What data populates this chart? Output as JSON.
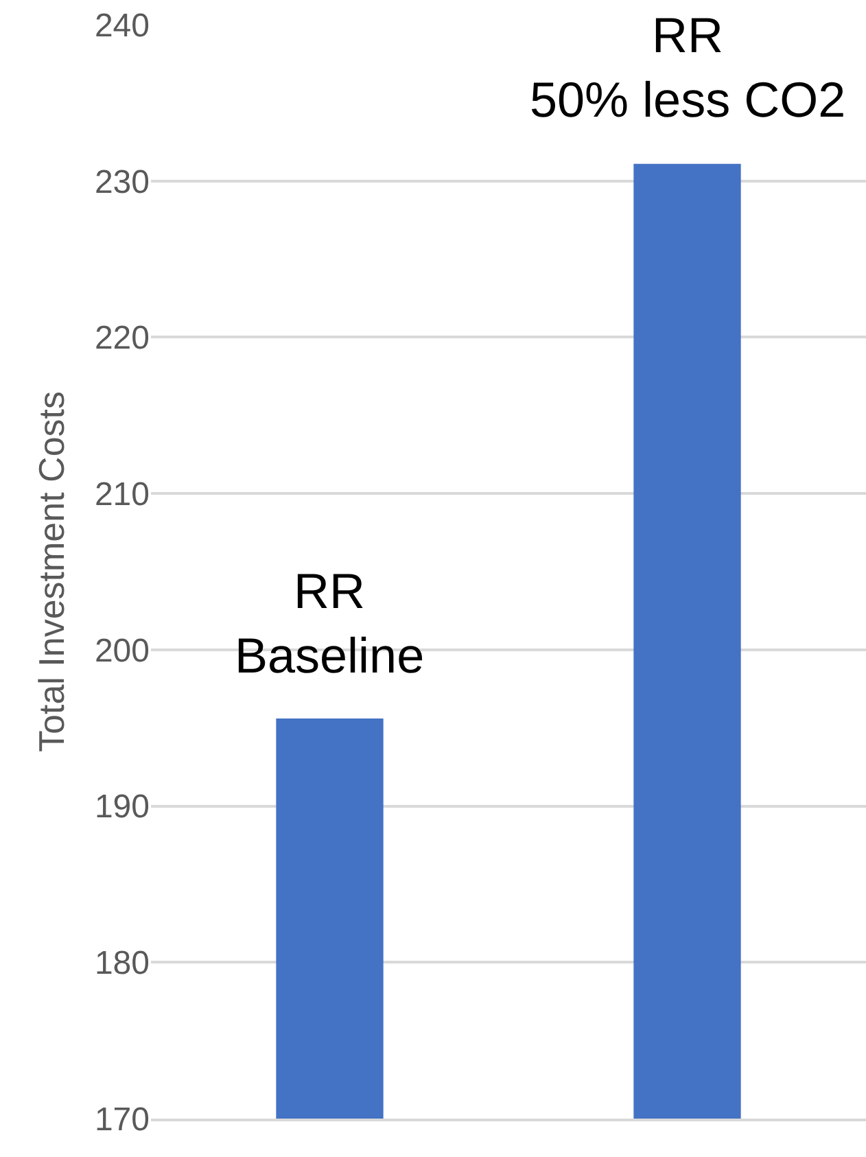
{
  "chart_data": {
    "type": "bar",
    "ylabel": "Total Investment Costs",
    "categories": [
      null,
      null
    ],
    "values": [
      195.6,
      231.1
    ],
    "color": "#4472c4",
    "ylim": [
      170,
      240
    ],
    "yticks": [
      170,
      180,
      190,
      200,
      210,
      220,
      230,
      240
    ],
    "grid": "y",
    "annotations": [
      {
        "text": "RR\nBaseline",
        "y": 195.6
      },
      {
        "text": "RR\n50% less CO2",
        "y": 231.1
      }
    ]
  }
}
